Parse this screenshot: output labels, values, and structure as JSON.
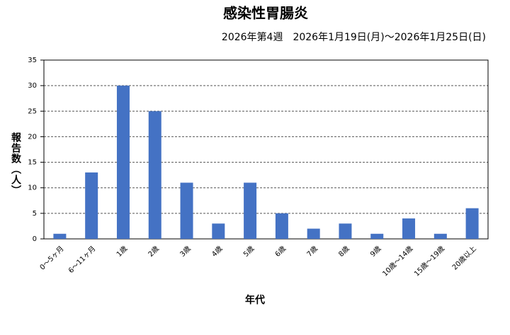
{
  "chart_data": {
    "type": "bar",
    "title": "感染性胃腸炎",
    "subtitle": "2026年第4週　2026年1月19日(月)～2026年1月25日(日)",
    "x_label": "年代",
    "y_label": "報告数（人）",
    "categories": [
      "0～5ヶ月",
      "6～11ヶ月",
      "1歳",
      "2歳",
      "3歳",
      "4歳",
      "5歳",
      "6歳",
      "7歳",
      "8歳",
      "9歳",
      "10歳～14歳",
      "15歳～19歳",
      "20歳以上"
    ],
    "values": [
      1,
      13,
      30,
      25,
      11,
      3,
      11,
      5,
      2,
      3,
      1,
      4,
      1,
      6
    ],
    "color": "#4472c4",
    "ylim": [
      0,
      35
    ],
    "yticks": [
      0,
      5,
      10,
      15,
      20,
      25,
      30,
      35
    ],
    "grid": true
  }
}
